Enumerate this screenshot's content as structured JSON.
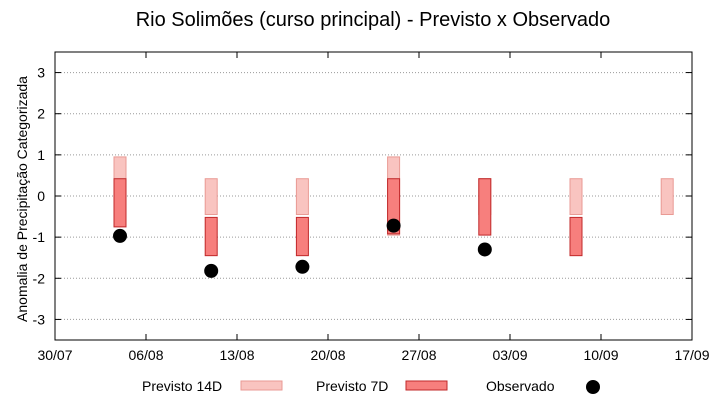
{
  "chart_data": {
    "type": "scatter",
    "title": "Rio Solimões (curso principal) - Previsto x Observado",
    "xlabel": "",
    "ylabel": "Anomalia de Precipitação Categorizada",
    "ylim": [
      -3.5,
      3.5
    ],
    "yticks": [
      "3",
      "2",
      "1",
      "0",
      "-1",
      "-2",
      "-3"
    ],
    "ytick_values": [
      3,
      2,
      1,
      0,
      -1,
      -2,
      -3
    ],
    "xticks": [
      "30/07",
      "06/08",
      "13/08",
      "20/08",
      "27/08",
      "03/09",
      "10/09",
      "17/09"
    ],
    "grid": true,
    "legend_position": "bottom",
    "categories": [
      "1",
      "2",
      "3",
      "4",
      "5",
      "6",
      "7"
    ],
    "series": [
      {
        "name": "Previsto 14D",
        "kind": "range-bar",
        "color": "#f9c4c0",
        "stroke": "#e99a94",
        "ranges": [
          [
            -0.75,
            0.95
          ],
          [
            -0.45,
            0.42
          ],
          [
            -0.45,
            0.42
          ],
          [
            -0.95,
            0.95
          ],
          [
            -0.45,
            0.42
          ],
          [
            -0.45,
            0.42
          ],
          [
            -0.45,
            0.42
          ]
        ]
      },
      {
        "name": "Previsto 7D",
        "kind": "range-bar",
        "color": "#f77f7d",
        "stroke": "#c0282a",
        "ranges": [
          [
            -0.75,
            0.42
          ],
          [
            -1.45,
            -0.52
          ],
          [
            -1.45,
            -0.52
          ],
          [
            -0.92,
            0.42
          ],
          [
            -0.95,
            0.42
          ],
          [
            -1.45,
            -0.52
          ],
          null
        ]
      },
      {
        "name": "Observado",
        "kind": "point",
        "color": "#000000",
        "values": [
          -0.97,
          -1.82,
          -1.72,
          -0.72,
          -1.3,
          null,
          null
        ]
      }
    ]
  }
}
